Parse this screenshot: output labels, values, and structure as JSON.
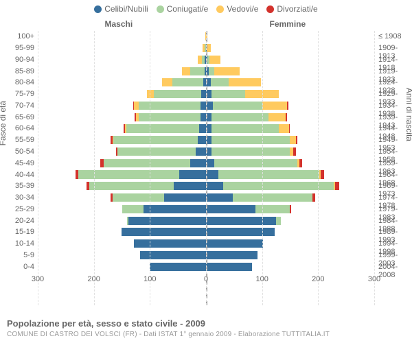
{
  "chart": {
    "type": "population-pyramid",
    "background_color": "#ffffff",
    "grid_color": "#e0e0e0",
    "zero_line_color": "#a0a0a0",
    "text_color": "#666666",
    "font_family": "Arial",
    "legend": [
      {
        "label": "Celibi/Nubili",
        "color": "#366f9d"
      },
      {
        "label": "Coniugati/e",
        "color": "#aad3a0"
      },
      {
        "label": "Vedovi/e",
        "color": "#ffca5f"
      },
      {
        "label": "Divorziati/e",
        "color": "#d3322c"
      }
    ],
    "column_headers": {
      "left": "Maschi",
      "right": "Femmine"
    },
    "axis_labels": {
      "left": "Fasce di età",
      "right": "Anni di nascita"
    },
    "xlim": 300,
    "xticks": [
      300,
      200,
      100,
      0,
      100,
      200,
      300
    ],
    "label_fontsize": 11,
    "title_fontsize": 13,
    "bar_height_ratio": 0.72,
    "age_bands": [
      "0-4",
      "5-9",
      "10-14",
      "15-19",
      "20-24",
      "25-29",
      "30-34",
      "35-39",
      "40-44",
      "45-49",
      "50-54",
      "55-59",
      "60-64",
      "65-69",
      "70-74",
      "75-79",
      "80-84",
      "85-89",
      "90-94",
      "95-99",
      "100+"
    ],
    "birth_years": [
      "2004-2008",
      "1999-2003",
      "1994-1998",
      "1989-1993",
      "1984-1988",
      "1979-1983",
      "1974-1978",
      "1969-1973",
      "1964-1968",
      "1959-1963",
      "1954-1958",
      "1949-1953",
      "1944-1948",
      "1939-1943",
      "1934-1938",
      "1929-1933",
      "1924-1928",
      "1919-1923",
      "1914-1918",
      "1909-1913",
      "≤ 1908"
    ],
    "bars": {
      "male": [
        {
          "s": 100,
          "m": 0,
          "w": 0,
          "d": 0
        },
        {
          "s": 118,
          "m": 0,
          "w": 0,
          "d": 0
        },
        {
          "s": 128,
          "m": 0,
          "w": 0,
          "d": 0
        },
        {
          "s": 150,
          "m": 0,
          "w": 0,
          "d": 0
        },
        {
          "s": 138,
          "m": 3,
          "w": 0,
          "d": 0
        },
        {
          "s": 112,
          "m": 38,
          "w": 0,
          "d": 0
        },
        {
          "s": 75,
          "m": 92,
          "w": 0,
          "d": 3
        },
        {
          "s": 58,
          "m": 150,
          "w": 0,
          "d": 5
        },
        {
          "s": 48,
          "m": 180,
          "w": 0,
          "d": 5
        },
        {
          "s": 28,
          "m": 155,
          "w": 0,
          "d": 5
        },
        {
          "s": 18,
          "m": 140,
          "w": 0,
          "d": 3
        },
        {
          "s": 15,
          "m": 150,
          "w": 2,
          "d": 3
        },
        {
          "s": 12,
          "m": 130,
          "w": 3,
          "d": 2
        },
        {
          "s": 10,
          "m": 110,
          "w": 5,
          "d": 2
        },
        {
          "s": 10,
          "m": 110,
          "w": 8,
          "d": 2
        },
        {
          "s": 8,
          "m": 85,
          "w": 12,
          "d": 0
        },
        {
          "s": 5,
          "m": 55,
          "w": 18,
          "d": 0
        },
        {
          "s": 3,
          "m": 25,
          "w": 15,
          "d": 0
        },
        {
          "s": 2,
          "m": 5,
          "w": 8,
          "d": 0
        },
        {
          "s": 0,
          "m": 2,
          "w": 4,
          "d": 0
        },
        {
          "s": 0,
          "m": 0,
          "w": 1,
          "d": 0
        }
      ],
      "female": [
        {
          "s": 82,
          "m": 0,
          "w": 0,
          "d": 0
        },
        {
          "s": 92,
          "m": 0,
          "w": 0,
          "d": 0
        },
        {
          "s": 102,
          "m": 0,
          "w": 0,
          "d": 0
        },
        {
          "s": 122,
          "m": 0,
          "w": 0,
          "d": 0
        },
        {
          "s": 125,
          "m": 8,
          "w": 0,
          "d": 0
        },
        {
          "s": 88,
          "m": 62,
          "w": 0,
          "d": 2
        },
        {
          "s": 48,
          "m": 142,
          "w": 0,
          "d": 5
        },
        {
          "s": 30,
          "m": 198,
          "w": 2,
          "d": 8
        },
        {
          "s": 22,
          "m": 180,
          "w": 2,
          "d": 7
        },
        {
          "s": 15,
          "m": 148,
          "w": 4,
          "d": 5
        },
        {
          "s": 10,
          "m": 140,
          "w": 6,
          "d": 5
        },
        {
          "s": 10,
          "m": 140,
          "w": 10,
          "d": 3
        },
        {
          "s": 10,
          "m": 120,
          "w": 18,
          "d": 2
        },
        {
          "s": 10,
          "m": 102,
          "w": 30,
          "d": 2
        },
        {
          "s": 12,
          "m": 88,
          "w": 45,
          "d": 2
        },
        {
          "s": 10,
          "m": 60,
          "w": 60,
          "d": 0
        },
        {
          "s": 8,
          "m": 32,
          "w": 58,
          "d": 0
        },
        {
          "s": 5,
          "m": 10,
          "w": 45,
          "d": 0
        },
        {
          "s": 3,
          "m": 3,
          "w": 20,
          "d": 0
        },
        {
          "s": 1,
          "m": 0,
          "w": 8,
          "d": 0
        },
        {
          "s": 0,
          "m": 0,
          "w": 2,
          "d": 0
        }
      ]
    },
    "footer": {
      "title": "Popolazione per età, sesso e stato civile - 2009",
      "source": "COMUNE DI CASTRO DEI VOLSCI (FR) - Dati ISTAT 1° gennaio 2009 - Elaborazione TUTTITALIA.IT"
    }
  }
}
